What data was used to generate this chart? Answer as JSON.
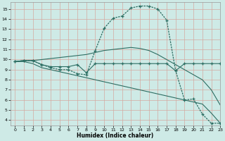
{
  "xlabel": "Humidex (Indice chaleur)",
  "bg_color": "#ceeae6",
  "line_color": "#2d6e63",
  "grid_color_major": "#d4a0a0",
  "xlim": [
    -0.5,
    23
  ],
  "ylim": [
    3.5,
    15.7
  ],
  "yticks": [
    4,
    5,
    6,
    7,
    8,
    9,
    10,
    11,
    12,
    13,
    14,
    15
  ],
  "xticks": [
    0,
    1,
    2,
    3,
    4,
    5,
    6,
    7,
    8,
    9,
    10,
    11,
    12,
    13,
    14,
    15,
    16,
    17,
    18,
    19,
    20,
    21,
    22,
    23
  ],
  "line_dotted_x": [
    0,
    1,
    2,
    3,
    4,
    5,
    6,
    7,
    8,
    9,
    10,
    11,
    12,
    13,
    14,
    15,
    16,
    17,
    18,
    19,
    20,
    21,
    22,
    23
  ],
  "line_dotted_y": [
    9.8,
    9.9,
    9.9,
    9.5,
    9.2,
    9.0,
    9.0,
    8.6,
    8.5,
    10.9,
    13.1,
    14.1,
    14.3,
    15.1,
    15.3,
    15.3,
    15.0,
    13.9,
    8.9,
    6.0,
    6.1,
    4.6,
    3.7,
    3.7
  ],
  "line_flat_x": [
    0,
    1,
    2,
    3,
    4,
    5,
    6,
    7,
    8,
    9,
    10,
    11,
    12,
    13,
    14,
    15,
    16,
    17,
    18,
    19,
    20,
    21,
    22,
    23
  ],
  "line_flat_y": [
    9.8,
    9.9,
    9.9,
    9.5,
    9.3,
    9.3,
    9.3,
    9.5,
    8.7,
    9.6,
    9.6,
    9.6,
    9.6,
    9.6,
    9.6,
    9.6,
    9.6,
    9.6,
    8.9,
    9.6,
    9.6,
    9.6,
    9.6,
    9.6
  ],
  "line_rise_x": [
    0,
    1,
    2,
    3,
    4,
    5,
    6,
    7,
    8,
    9,
    10,
    11,
    12,
    13,
    14,
    15,
    16,
    17,
    18,
    19,
    20,
    21,
    22,
    23
  ],
  "line_rise_y": [
    9.8,
    9.9,
    9.9,
    10.0,
    10.1,
    10.2,
    10.3,
    10.4,
    10.5,
    10.7,
    10.9,
    11.0,
    11.1,
    11.2,
    11.1,
    10.9,
    10.5,
    10.0,
    9.5,
    9.0,
    8.5,
    8.0,
    7.0,
    5.5
  ],
  "line_decay_x": [
    0,
    1,
    2,
    3,
    4,
    5,
    6,
    7,
    8,
    9,
    10,
    11,
    12,
    13,
    14,
    15,
    16,
    17,
    18,
    19,
    20,
    21,
    22,
    23
  ],
  "line_decay_y": [
    9.8,
    9.8,
    9.6,
    9.2,
    9.0,
    8.8,
    8.6,
    8.4,
    8.2,
    8.0,
    7.8,
    7.6,
    7.4,
    7.2,
    7.0,
    6.8,
    6.6,
    6.4,
    6.2,
    6.0,
    5.8,
    5.6,
    4.7,
    3.7
  ]
}
